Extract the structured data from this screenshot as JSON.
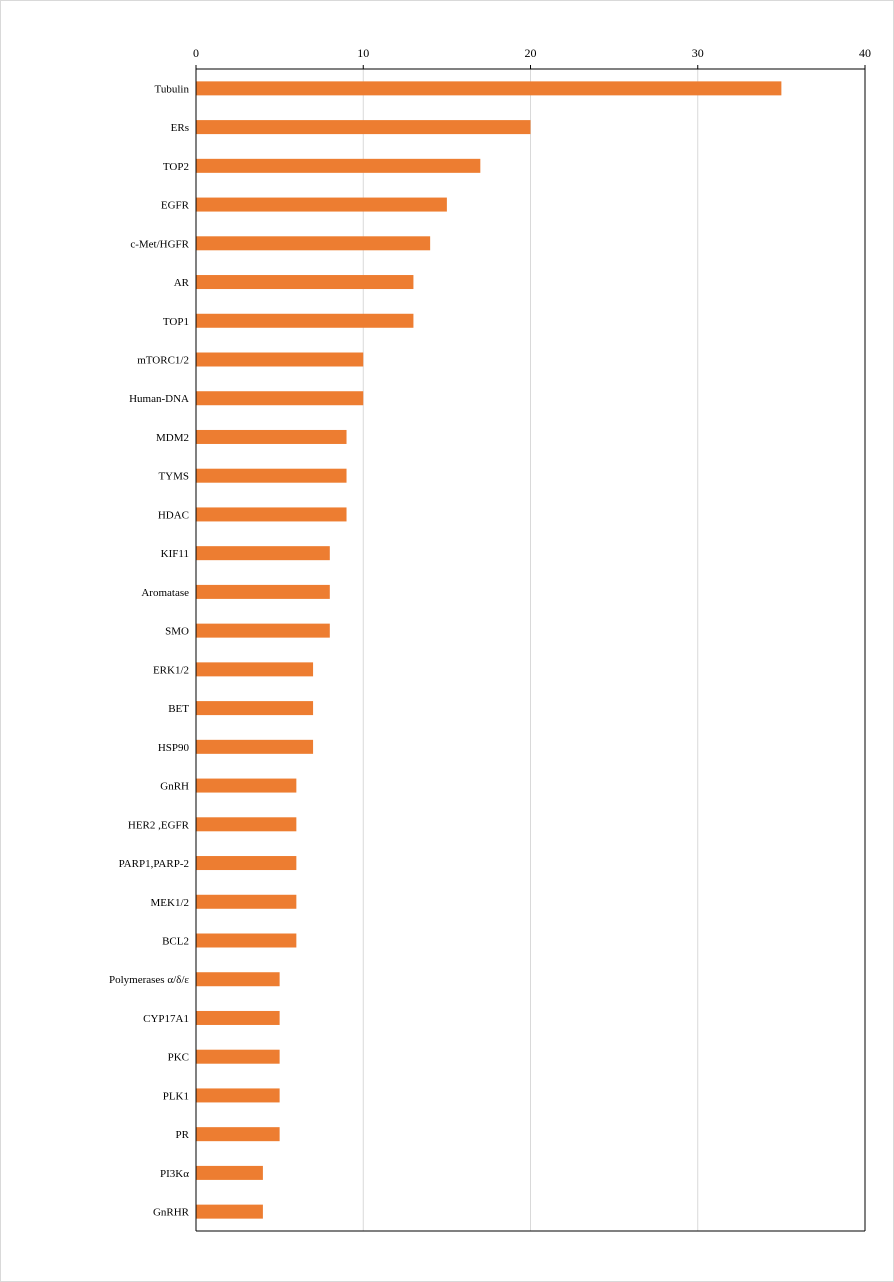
{
  "chart_data": {
    "type": "bar",
    "orientation": "horizontal",
    "title": "",
    "xlabel": "",
    "ylabel": "",
    "xlim": [
      0,
      40
    ],
    "x_ticks": [
      0,
      10,
      20,
      30,
      40
    ],
    "x_tick_labels": [
      "0",
      "10",
      "20",
      "30",
      "40"
    ],
    "x_axis_position": "top",
    "grid": "vertical gridlines",
    "legend": "none",
    "bar_color": "#ED7D31",
    "gridline_color": "#D9D9D9",
    "axis_color": "#000000",
    "categories": [
      "Tubulin",
      "ERs",
      "TOP2",
      "EGFR",
      "c-Met/HGFR",
      "AR",
      "TOP1",
      "mTORC1/2",
      "Human-DNA",
      "MDM2",
      "TYMS",
      "HDAC",
      "KIF11",
      "Aromatase",
      "SMO",
      "ERK1/2",
      "BET",
      "HSP90",
      "GnRH",
      "HER2 ,EGFR",
      "PARP1,PARP-2",
      "MEK1/2",
      "BCL2",
      "Polymerases α/δ/ε",
      "CYP17A1",
      "PKC",
      "PLK1",
      "PR",
      "PI3Kα",
      "GnRHR"
    ],
    "values": [
      35,
      20,
      17,
      15,
      14,
      13,
      13,
      10,
      10,
      9,
      9,
      9,
      8,
      8,
      8,
      7,
      7,
      7,
      6,
      6,
      6,
      6,
      6,
      5,
      5,
      5,
      5,
      5,
      4,
      4
    ]
  }
}
